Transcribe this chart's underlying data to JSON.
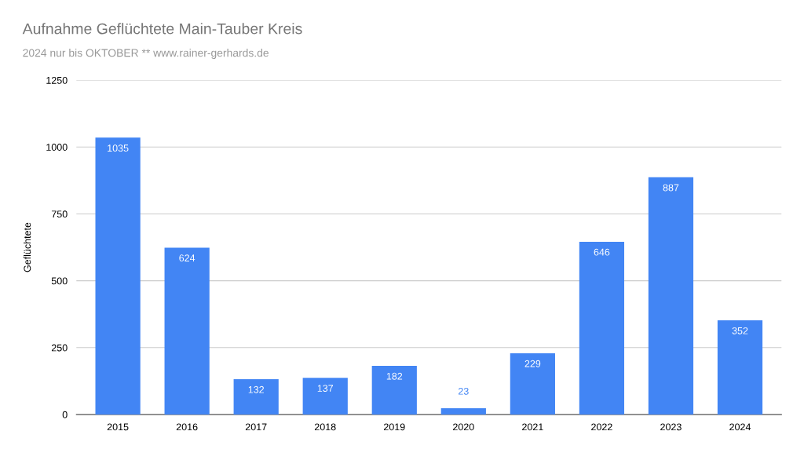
{
  "chart_data": {
    "type": "bar",
    "title": "Aufnahme Geflüchtete Main-Tauber Kreis",
    "subtitle": "2024 nur bis OKTOBER ** www.rainer-gerhards.de",
    "ylabel": "Geflüchtete",
    "categories": [
      "2015",
      "2016",
      "2017",
      "2018",
      "2019",
      "2020",
      "2021",
      "2022",
      "2023",
      "2024"
    ],
    "values": [
      1035,
      624,
      132,
      137,
      182,
      23,
      229,
      646,
      887,
      352
    ],
    "color": "#4285f4",
    "ylim": [
      0,
      1250
    ],
    "yticks": [
      0,
      250,
      500,
      750,
      1000,
      1250
    ],
    "grid": "y",
    "data_labels": true
  }
}
